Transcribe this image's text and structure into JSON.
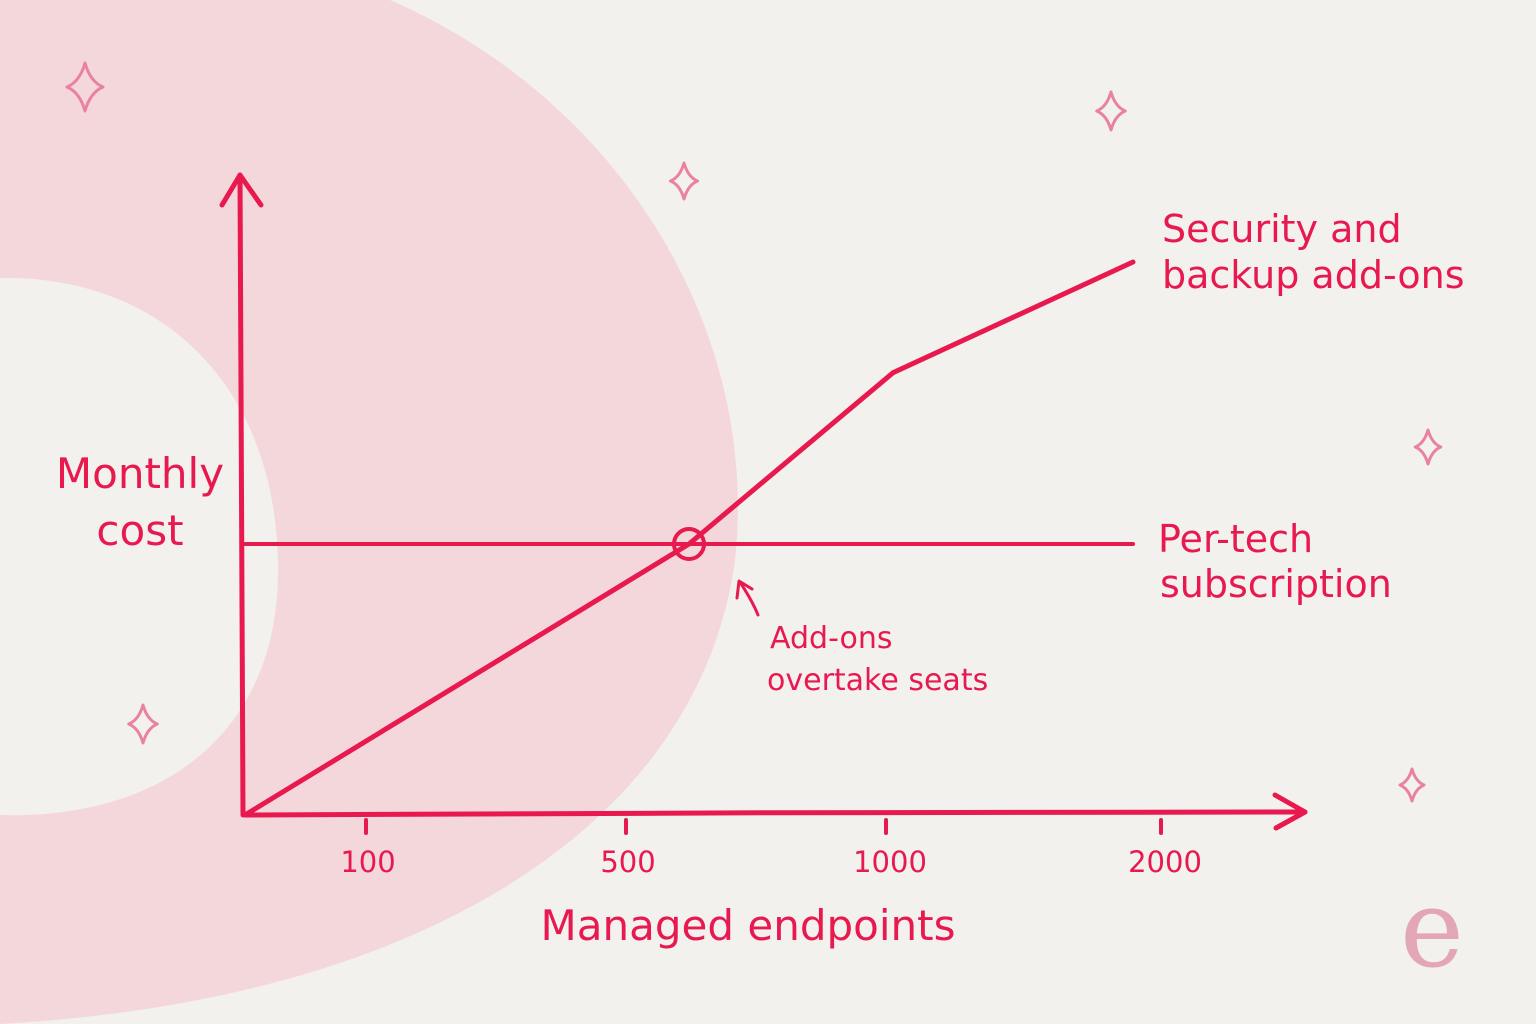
{
  "colors": {
    "background": "#f3f1ed",
    "blob": "#f4d7db",
    "ink": "#e8194f",
    "sparkle": "#e882a0",
    "logo": "#e2a6b6"
  },
  "chart_data": {
    "type": "line",
    "ylabel_lines": [
      "Monthly",
      "cost"
    ],
    "xlabel": "Managed endpoints",
    "x_ticks": [
      "100",
      "500",
      "1000",
      "2000"
    ],
    "y_ticks": [],
    "grid": false,
    "series": [
      {
        "name": "Security and backup add-ons",
        "name_lines": [
          "Security and",
          "backup add-ons"
        ],
        "shape": "rising",
        "points": [
          [
            0,
            0
          ],
          [
            0.5,
            0.49
          ],
          [
            0.73,
            0.8
          ],
          [
            1.0,
            1.0
          ]
        ]
      },
      {
        "name": "Per-tech subscription",
        "name_lines": [
          "Per-tech",
          "subscription"
        ],
        "shape": "flat",
        "points": [
          [
            0,
            0.49
          ],
          [
            1.0,
            0.49
          ]
        ]
      }
    ],
    "annotations": [
      {
        "text_lines": [
          "Add-ons",
          "overtake seats"
        ],
        "at": [
          0.5,
          0.49
        ]
      }
    ]
  },
  "logo": {
    "text": "e"
  },
  "decor": {
    "sparkles": [
      "sparkle-icon",
      "sparkle-icon",
      "sparkle-icon",
      "sparkle-icon",
      "sparkle-icon",
      "sparkle-icon"
    ]
  }
}
